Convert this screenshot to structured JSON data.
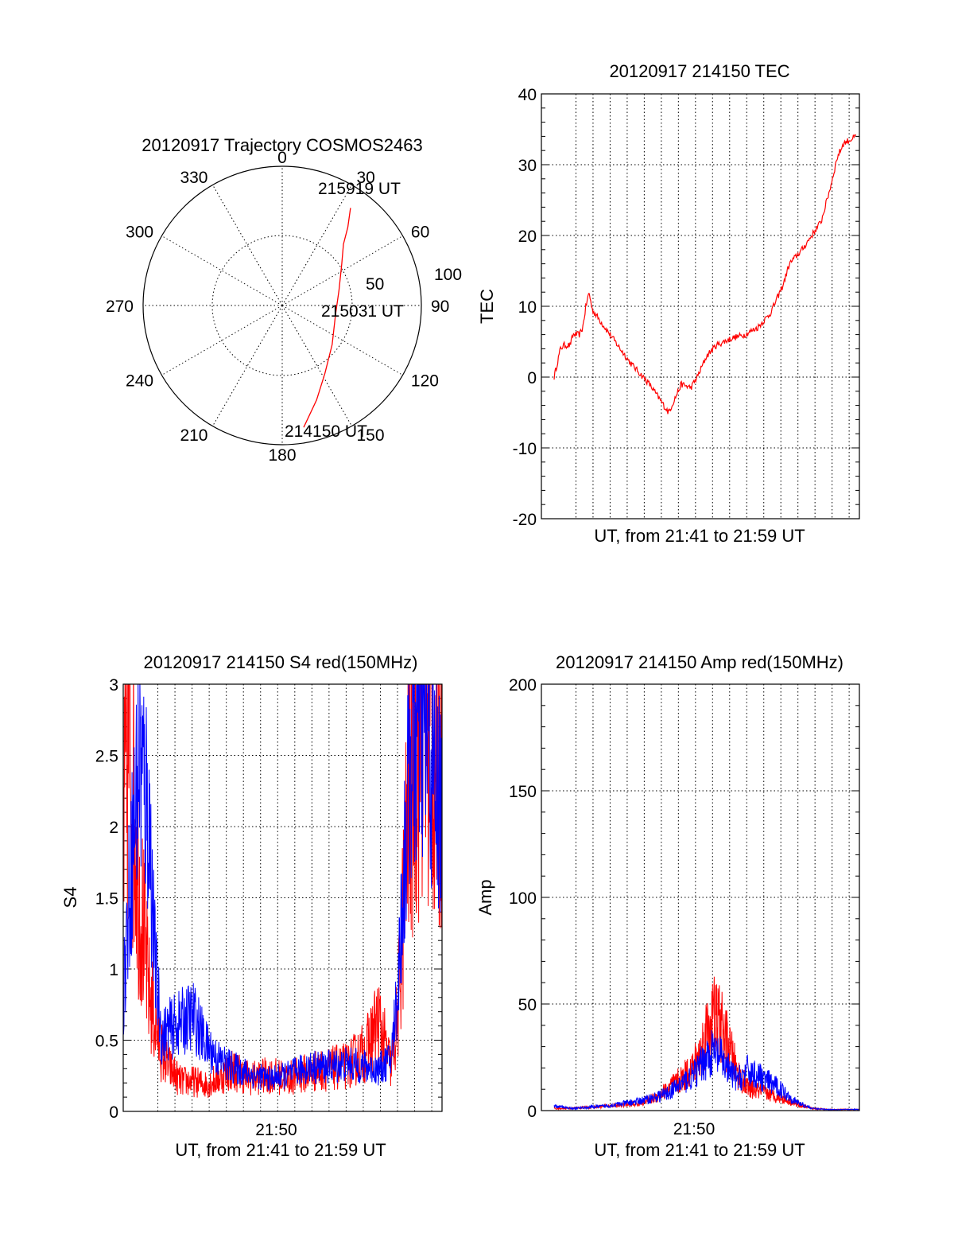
{
  "colors": {
    "red": "#ff0000",
    "blue": "#0000ff",
    "axis": "#000000"
  },
  "chart_data": [
    {
      "id": "trajectory",
      "type": "scatter",
      "title": "20120917 Trajectory COSMOS2463",
      "azimuth_labels": [
        "0",
        "30",
        "60",
        "90",
        "120",
        "150",
        "180",
        "210",
        "240",
        "270",
        "300",
        "330"
      ],
      "elevation_ring_labels": [
        "50",
        "100"
      ],
      "annotations": [
        "215919 UT",
        "215031 UT",
        "214150 UT"
      ],
      "series": [
        {
          "color": "#ff0000",
          "points": [
            {
              "az": 170,
              "el": 10
            },
            {
              "az": 160,
              "el": 25
            },
            {
              "az": 148,
              "el": 38
            },
            {
              "az": 128,
              "el": 49
            },
            {
              "az": 100,
              "el": 55
            },
            {
              "az": 75,
              "el": 52
            },
            {
              "az": 55,
              "el": 43
            },
            {
              "az": 45,
              "el": 34
            },
            {
              "az": 40,
              "el": 24
            },
            {
              "az": 35,
              "el": 13
            }
          ]
        }
      ]
    },
    {
      "id": "tec",
      "type": "line",
      "title": "20120917 214150 TEC",
      "xlabel": "UT, from 21:41 to 21:59 UT",
      "ylabel": "TEC",
      "ylim": [
        -20,
        40
      ],
      "yticks": [
        "40",
        "30",
        "20",
        "10",
        "0",
        "-10",
        "-20"
      ],
      "xticks": [],
      "grid": true,
      "series": [
        {
          "color": "#ff0000",
          "x": [
            0.04,
            0.06,
            0.07,
            0.09,
            0.1,
            0.12,
            0.13,
            0.14,
            0.15,
            0.16,
            0.2,
            0.28,
            0.34,
            0.4,
            0.44,
            0.47,
            0.49,
            0.5,
            0.52,
            0.55,
            0.6,
            0.64,
            0.68,
            0.72,
            0.76,
            0.78,
            0.8,
            0.82,
            0.85,
            0.88,
            0.91,
            0.93,
            0.94,
            0.95,
            0.97,
            0.99
          ],
          "y": [
            0,
            4,
            4.5,
            4.5,
            6,
            6,
            7,
            10,
            12,
            9.5,
            7,
            2,
            -1,
            -5,
            -1,
            -1.5,
            0,
            1,
            3,
            4.5,
            5.5,
            6,
            7,
            9,
            13,
            16,
            17,
            18,
            20,
            22,
            27,
            31,
            32,
            33,
            33.5,
            34
          ]
        }
      ]
    },
    {
      "id": "s4",
      "type": "line",
      "title": "20120917 214150 S4 red(150MHz)",
      "xlabel": "UT, from 21:41 to 21:59 UT",
      "ylabel": "S4",
      "ylim": [
        0,
        3
      ],
      "yticks": [
        "3",
        "2.5",
        "2",
        "1.5",
        "1",
        "0.5",
        "0"
      ],
      "xticks": [
        {
          "x": 0.48,
          "label": "21:50"
        }
      ],
      "grid": true,
      "series": [
        {
          "color": "#ff0000",
          "x": [
            0.0,
            0.02,
            0.05,
            0.08,
            0.1,
            0.12,
            0.14,
            0.18,
            0.22,
            0.26,
            0.3,
            0.34,
            0.4,
            0.46,
            0.52,
            0.58,
            0.64,
            0.7,
            0.76,
            0.8,
            0.84,
            0.86,
            0.9,
            0.94,
            0.97,
            1.0
          ],
          "y": [
            1.8,
            2.5,
            1.5,
            0.8,
            0.6,
            0.4,
            0.3,
            0.2,
            0.2,
            0.18,
            0.22,
            0.28,
            0.22,
            0.24,
            0.22,
            0.26,
            0.28,
            0.3,
            0.4,
            0.6,
            0.3,
            0.6,
            2.2,
            2.8,
            2.5,
            2.2
          ],
          "noise": 0.7
        },
        {
          "color": "#0000ff",
          "x": [
            0.0,
            0.02,
            0.05,
            0.08,
            0.1,
            0.12,
            0.14,
            0.18,
            0.22,
            0.26,
            0.3,
            0.34,
            0.4,
            0.46,
            0.52,
            0.58,
            0.64,
            0.7,
            0.76,
            0.8,
            0.84,
            0.86,
            0.9,
            0.94,
            0.97,
            1.0
          ],
          "y": [
            0.8,
            1.5,
            2.4,
            2.0,
            1.0,
            0.5,
            0.55,
            0.6,
            0.65,
            0.45,
            0.35,
            0.3,
            0.25,
            0.22,
            0.25,
            0.3,
            0.3,
            0.32,
            0.3,
            0.28,
            0.35,
            0.8,
            2.4,
            2.6,
            2.3,
            2.0
          ],
          "noise": 0.5
        }
      ]
    },
    {
      "id": "amp",
      "type": "line",
      "title": "20120917 214150 Amp red(150MHz)",
      "xlabel": "UT, from 21:41 to 21:59 UT",
      "ylabel": "Amp",
      "ylim": [
        0,
        200
      ],
      "yticks": [
        "200",
        "150",
        "100",
        "50",
        "0"
      ],
      "xticks": [
        {
          "x": 0.48,
          "label": "21:50"
        }
      ],
      "grid": true,
      "series": [
        {
          "color": "#ff0000",
          "x": [
            0.04,
            0.1,
            0.2,
            0.3,
            0.36,
            0.4,
            0.44,
            0.48,
            0.5,
            0.52,
            0.54,
            0.56,
            0.58,
            0.6,
            0.62,
            0.65,
            0.7,
            0.75,
            0.8,
            0.85,
            0.9,
            1.0
          ],
          "y": [
            1,
            1,
            2,
            3,
            6,
            10,
            14,
            20,
            26,
            36,
            42,
            40,
            32,
            24,
            16,
            10,
            8,
            6,
            3,
            1,
            0.5,
            0.5
          ],
          "noise": 0.6
        },
        {
          "color": "#0000ff",
          "x": [
            0.04,
            0.1,
            0.2,
            0.3,
            0.36,
            0.4,
            0.44,
            0.48,
            0.5,
            0.52,
            0.54,
            0.56,
            0.58,
            0.6,
            0.62,
            0.65,
            0.7,
            0.75,
            0.8,
            0.85,
            0.9,
            1.0
          ],
          "y": [
            2,
            1,
            2,
            4,
            6,
            8,
            12,
            16,
            20,
            24,
            26,
            24,
            20,
            16,
            14,
            18,
            14,
            10,
            4,
            1,
            0.5,
            0.5
          ],
          "noise": 0.55
        }
      ]
    }
  ]
}
